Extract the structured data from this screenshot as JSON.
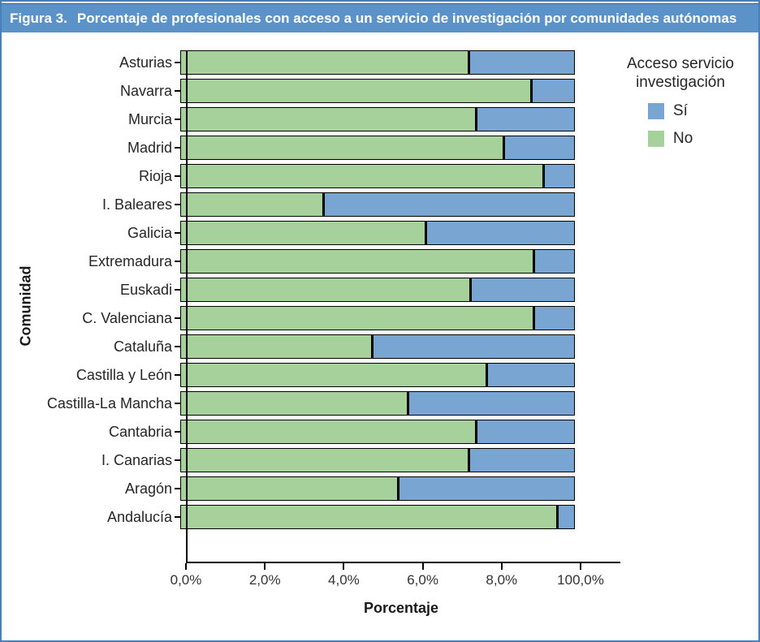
{
  "figure": {
    "label": "Figura 3.",
    "title": "Porcentaje de profesionales con acceso a un servicio de investigación por comunidades autónomas"
  },
  "legend": {
    "title_line1": "Acceso servicio",
    "title_line2": "investigación",
    "items": [
      {
        "label": "Sí",
        "color": "#78a5d2"
      },
      {
        "label": "No",
        "color": "#a6d19a"
      }
    ]
  },
  "axes": {
    "x_label": "Porcentaje",
    "y_label": "Comunidad",
    "x_ticks": [
      "0,0%",
      "2,0%",
      "4,0%",
      "6,0%",
      "8,0%",
      "100,0%"
    ]
  },
  "colors": {
    "si_blue": "#78a5d2",
    "no_green": "#a6d19a",
    "header_blue": "#5b93c9",
    "frame_blue": "#4a7fba",
    "bar_border": "#000000"
  },
  "chart_data": {
    "type": "bar",
    "orientation": "horizontal",
    "stacked": true,
    "title": "Porcentaje de profesionales con acceso a un servicio de investigación por comunidades autónomas",
    "xlabel": "Porcentaje",
    "ylabel": "Comunidad",
    "xlim": [
      0,
      100
    ],
    "x_tick_labels": [
      "0,0%",
      "2,0%",
      "4,0%",
      "6,0%",
      "8,0%",
      "100,0%"
    ],
    "legend_title": "Acceso servicio investigación",
    "legend_position": "right",
    "categories": [
      "Asturias",
      "Navarra",
      "Murcia",
      "Madrid",
      "Rioja",
      "I. Baleares",
      "Galicia",
      "Extremadura",
      "Euskadi",
      "C. Valenciana",
      "Cataluña",
      "Castilla y León",
      "Castilla-La Mancha",
      "Cantabria",
      "I. Canarias",
      "Aragón",
      "Andalucía"
    ],
    "series": [
      {
        "name": "No",
        "color": "#a6d19a",
        "values": [
          73.5,
          89.5,
          75.5,
          82.5,
          92.5,
          36.5,
          62.5,
          90.0,
          74.0,
          90.0,
          49.0,
          78.0,
          58.0,
          75.5,
          73.5,
          55.5,
          96.0
        ]
      },
      {
        "name": "Sí",
        "color": "#78a5d2",
        "values": [
          26.5,
          10.5,
          24.5,
          17.5,
          7.5,
          63.5,
          37.5,
          10.0,
          26.0,
          10.0,
          51.0,
          22.0,
          42.0,
          24.5,
          26.5,
          44.5,
          4.0
        ]
      }
    ]
  }
}
